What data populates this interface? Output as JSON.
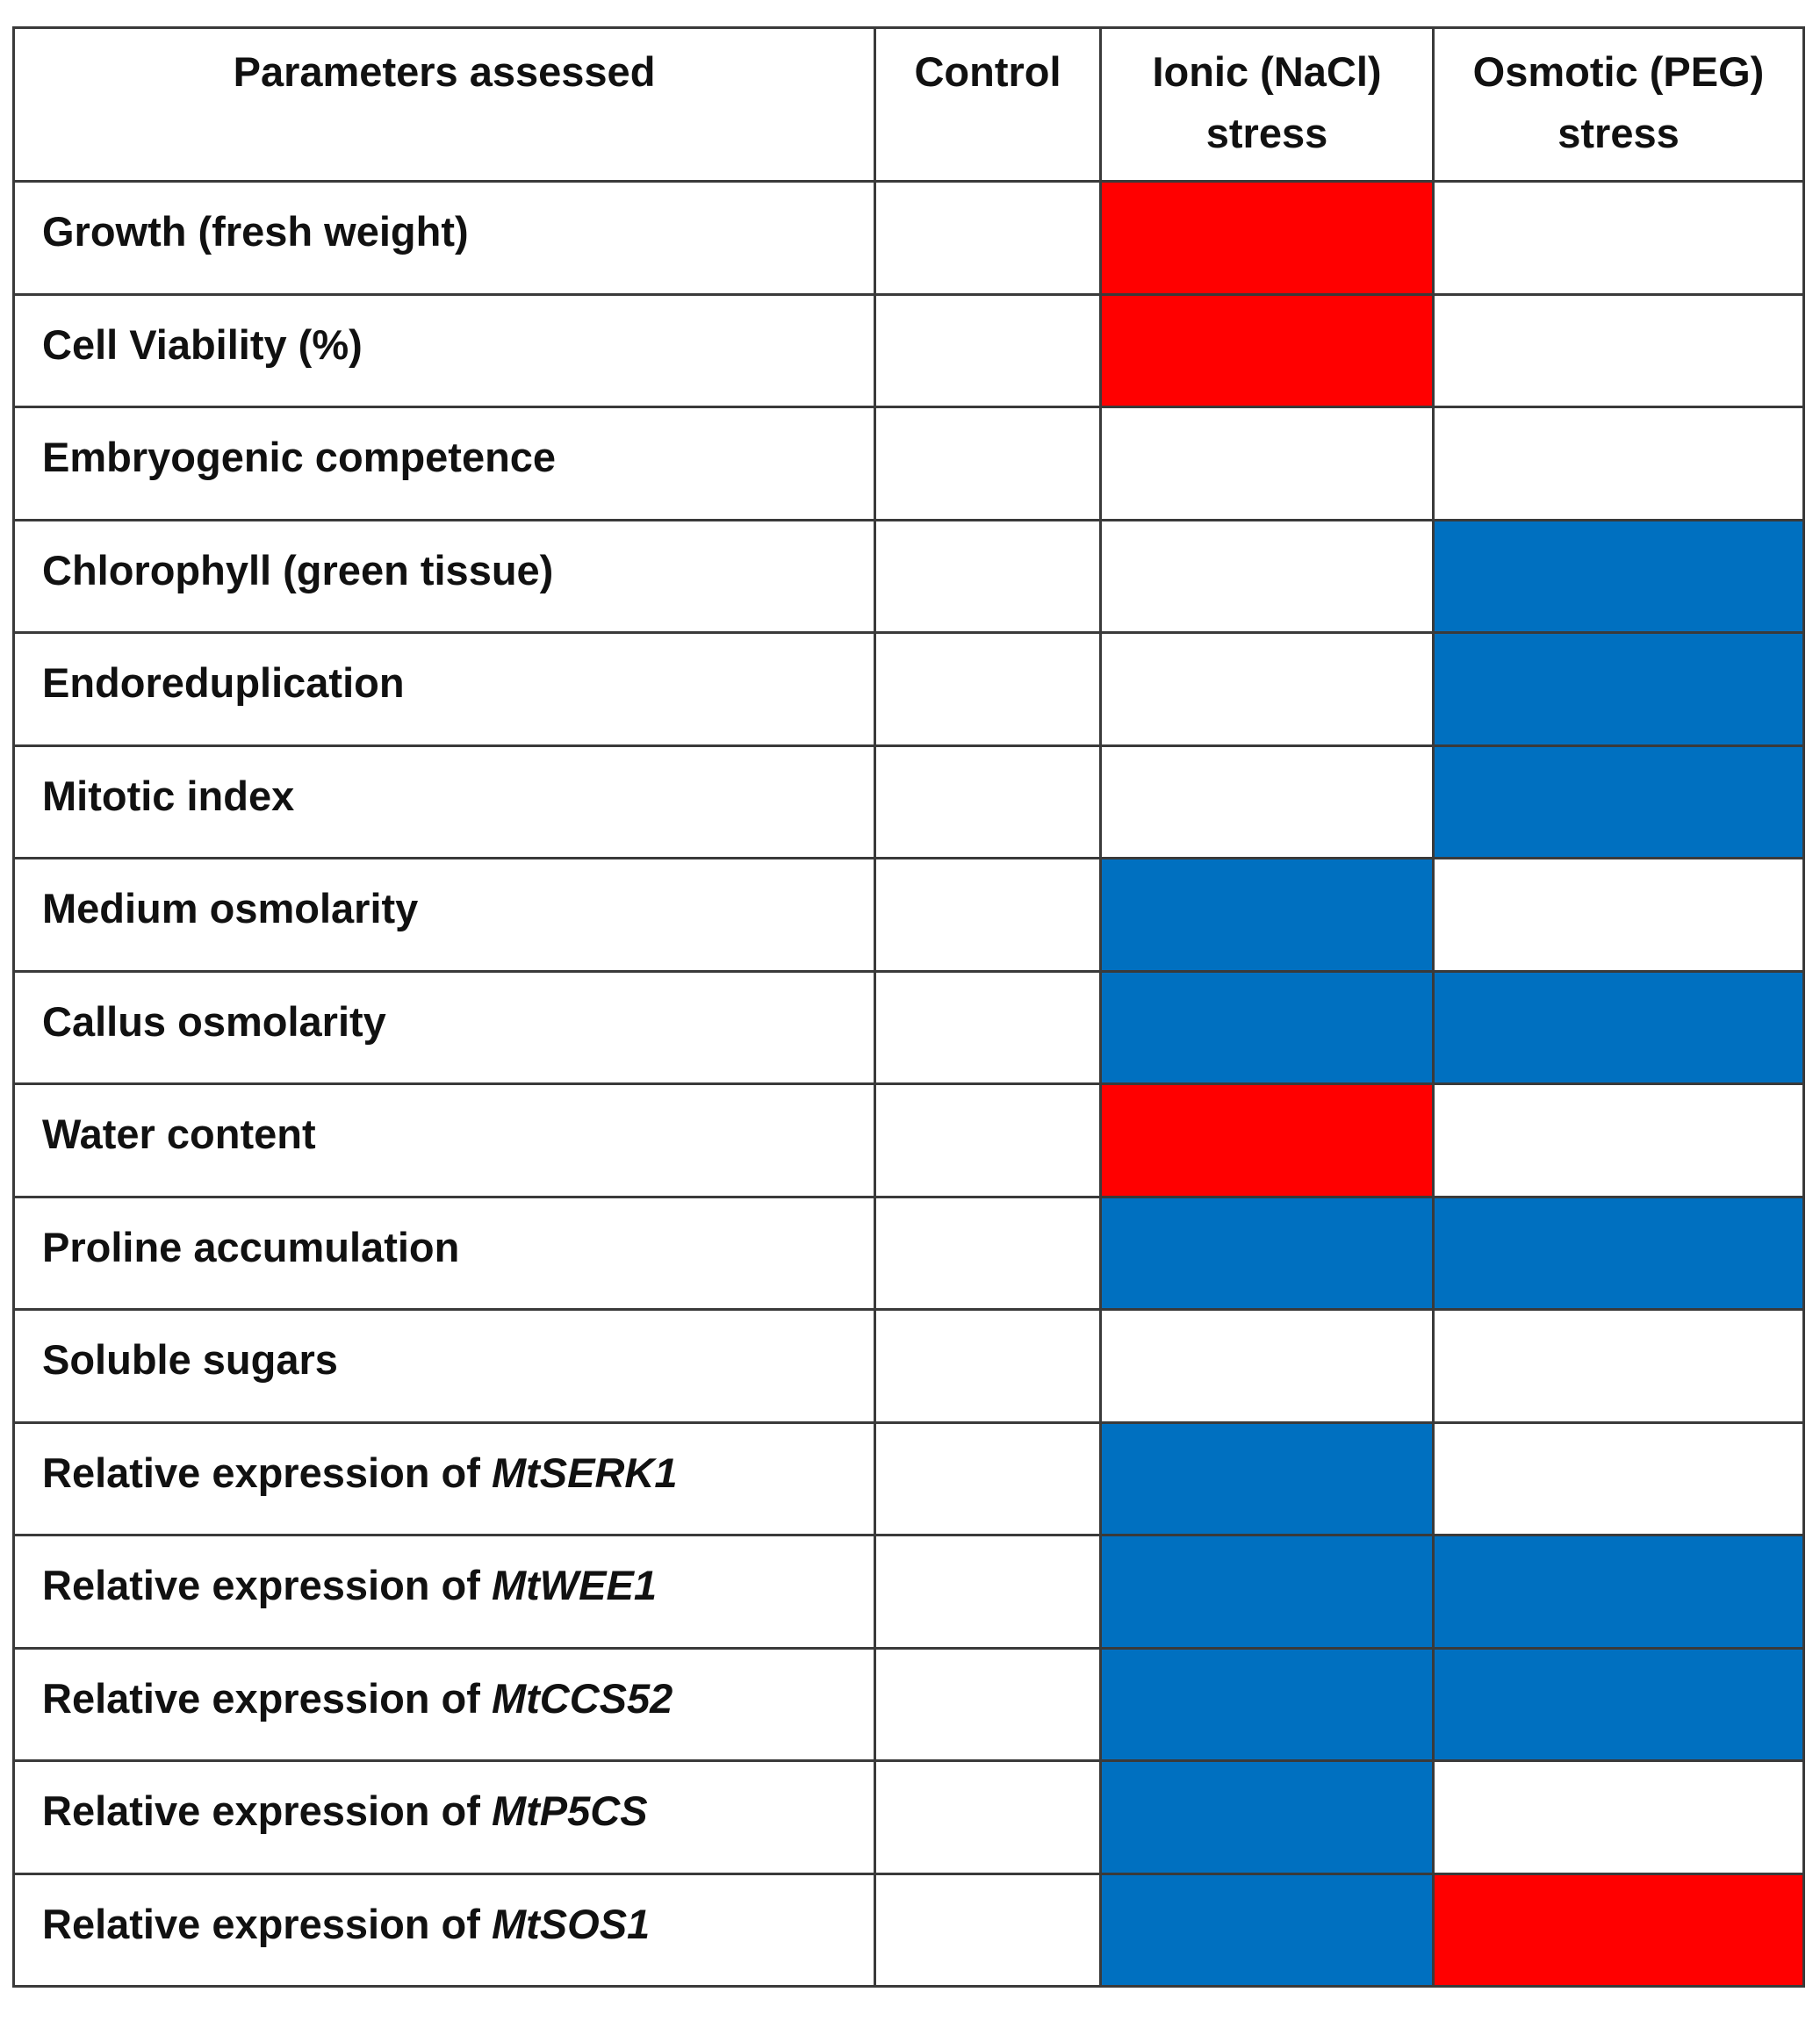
{
  "colors": {
    "increase": "#0070c0",
    "decrease": "#ff0000",
    "no_change": "#ffffff"
  },
  "headers": {
    "parameters": "Parameters assessed",
    "control": "Control",
    "ionic_line1": "Ionic (NaCl)",
    "ionic_line2": "stress",
    "osmotic_line1": "Osmotic (PEG)",
    "osmotic_line2": "stress"
  },
  "rows": [
    {
      "label": "Growth (fresh weight)",
      "gene": "",
      "control": "none",
      "ionic": "decrease",
      "osmotic": "none"
    },
    {
      "label": "Cell Viability (%)",
      "gene": "",
      "control": "none",
      "ionic": "decrease",
      "osmotic": "none"
    },
    {
      "label": "Embryogenic competence",
      "gene": "",
      "control": "none",
      "ionic": "none",
      "osmotic": "none"
    },
    {
      "label": "Chlorophyll (green tissue)",
      "gene": "",
      "control": "none",
      "ionic": "none",
      "osmotic": "increase"
    },
    {
      "label": "Endoreduplication",
      "gene": "",
      "control": "none",
      "ionic": "none",
      "osmotic": "increase"
    },
    {
      "label": "Mitotic index",
      "gene": "",
      "control": "none",
      "ionic": "none",
      "osmotic": "increase"
    },
    {
      "label": "Medium osmolarity",
      "gene": "",
      "control": "none",
      "ionic": "increase",
      "osmotic": "none"
    },
    {
      "label": "Callus osmolarity",
      "gene": "",
      "control": "none",
      "ionic": "increase",
      "osmotic": "increase"
    },
    {
      "label": "Water content",
      "gene": "",
      "control": "none",
      "ionic": "decrease",
      "osmotic": "none"
    },
    {
      "label": "Proline accumulation",
      "gene": "",
      "control": "none",
      "ionic": "increase",
      "osmotic": "increase"
    },
    {
      "label": "Soluble sugars",
      "gene": "",
      "control": "none",
      "ionic": "none",
      "osmotic": "none"
    },
    {
      "label": "Relative expression of ",
      "gene": "MtSERK1",
      "control": "none",
      "ionic": "increase",
      "osmotic": "none"
    },
    {
      "label": "Relative expression of ",
      "gene": "MtWEE1",
      "control": "none",
      "ionic": "increase",
      "osmotic": "increase"
    },
    {
      "label": "Relative expression of ",
      "gene": "MtCCS52",
      "control": "none",
      "ionic": "increase",
      "osmotic": "increase"
    },
    {
      "label": "Relative expression of ",
      "gene": "MtP5CS",
      "control": "none",
      "ionic": "increase",
      "osmotic": "none"
    },
    {
      "label": "Relative expression of ",
      "gene": "MtSOS1",
      "control": "none",
      "ionic": "increase",
      "osmotic": "decrease"
    }
  ]
}
